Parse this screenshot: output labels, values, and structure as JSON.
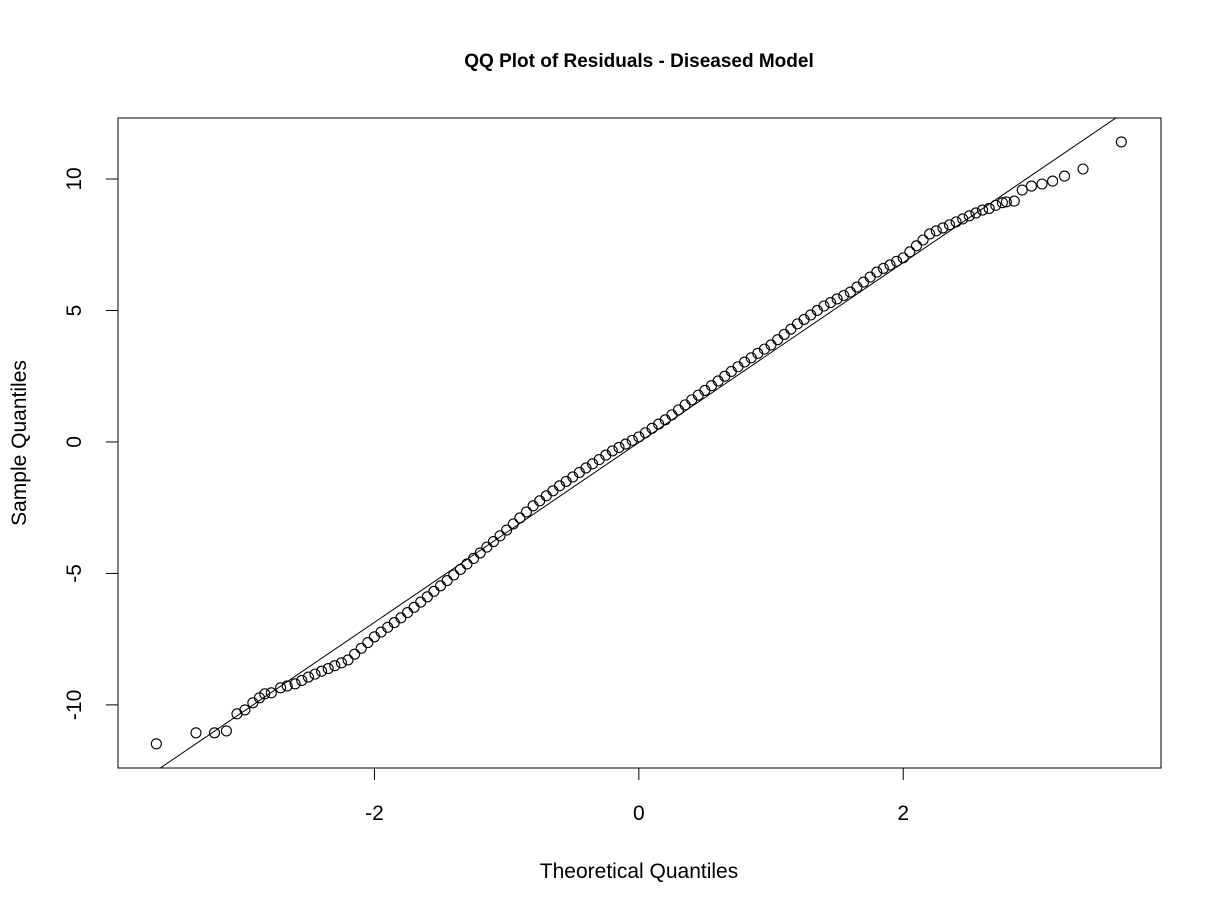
{
  "chart_data": {
    "type": "scatter",
    "title": "QQ Plot of Residuals - Diseased Model",
    "x_label": "Theoretical Quantiles",
    "y_label": "Sample Quantiles",
    "x": [
      -3.65,
      -3.35,
      -3.21,
      -3.12,
      -3.04,
      -2.98,
      -2.92,
      -2.87,
      -2.83,
      -2.78,
      -2.71,
      -2.66,
      -2.6,
      -2.55,
      -2.5,
      -2.45,
      -2.4,
      -2.35,
      -2.3,
      -2.25,
      -2.2,
      -2.15,
      -2.1,
      -2.05,
      -2.0,
      -1.95,
      -1.9,
      -1.85,
      -1.8,
      -1.75,
      -1.7,
      -1.65,
      -1.6,
      -1.55,
      -1.5,
      -1.45,
      -1.4,
      -1.35,
      -1.3,
      -1.25,
      -1.2,
      -1.15,
      -1.1,
      -1.05,
      -1.0,
      -0.95,
      -0.9,
      -0.85,
      -0.8,
      -0.75,
      -0.7,
      -0.65,
      -0.6,
      -0.55,
      -0.5,
      -0.45,
      -0.4,
      -0.35,
      -0.3,
      -0.25,
      -0.2,
      -0.15,
      -0.1,
      -0.05,
      0,
      0.05,
      0.1,
      0.15,
      0.2,
      0.25,
      0.3,
      0.35,
      0.4,
      0.45,
      0.5,
      0.55,
      0.6,
      0.65,
      0.7,
      0.75,
      0.8,
      0.85,
      0.9,
      0.95,
      1.0,
      1.05,
      1.1,
      1.15,
      1.2,
      1.25,
      1.3,
      1.35,
      1.4,
      1.45,
      1.5,
      1.55,
      1.6,
      1.65,
      1.7,
      1.75,
      1.8,
      1.85,
      1.9,
      1.95,
      2.0,
      2.05,
      2.1,
      2.15,
      2.2,
      2.25,
      2.3,
      2.35,
      2.4,
      2.45,
      2.5,
      2.55,
      2.6,
      2.65,
      2.7,
      2.75,
      2.78,
      2.84,
      2.9,
      2.97,
      3.05,
      3.13,
      3.22,
      3.36,
      3.65
    ],
    "y": [
      -11.48,
      -11.06,
      -11.06,
      -10.99,
      -10.34,
      -10.19,
      -9.92,
      -9.73,
      -9.58,
      -9.54,
      -9.35,
      -9.28,
      -9.2,
      -9.07,
      -8.94,
      -8.83,
      -8.72,
      -8.62,
      -8.51,
      -8.4,
      -8.29,
      -8.07,
      -7.85,
      -7.63,
      -7.41,
      -7.23,
      -7.05,
      -6.87,
      -6.69,
      -6.49,
      -6.29,
      -6.09,
      -5.89,
      -5.68,
      -5.47,
      -5.27,
      -5.06,
      -4.85,
      -4.64,
      -4.43,
      -4.22,
      -4.0,
      -3.79,
      -3.57,
      -3.35,
      -3.12,
      -2.89,
      -2.66,
      -2.43,
      -2.24,
      -2.05,
      -1.86,
      -1.67,
      -1.5,
      -1.33,
      -1.16,
      -0.99,
      -0.83,
      -0.67,
      -0.5,
      -0.34,
      -0.21,
      -0.08,
      0.06,
      0.19,
      0.35,
      0.52,
      0.68,
      0.84,
      1.03,
      1.22,
      1.41,
      1.6,
      1.78,
      1.96,
      2.14,
      2.32,
      2.5,
      2.68,
      2.86,
      3.04,
      3.2,
      3.37,
      3.53,
      3.69,
      3.89,
      4.09,
      4.29,
      4.49,
      4.66,
      4.83,
      5.0,
      5.17,
      5.3,
      5.44,
      5.57,
      5.7,
      5.89,
      6.08,
      6.27,
      6.46,
      6.6,
      6.73,
      6.87,
      7.0,
      7.23,
      7.46,
      7.68,
      7.91,
      8.03,
      8.14,
      8.26,
      8.37,
      8.48,
      8.6,
      8.71,
      8.82,
      8.88,
      9.0,
      9.1,
      9.13,
      9.16,
      9.58,
      9.73,
      9.81,
      9.92,
      10.11,
      10.38,
      11.41
    ],
    "marker_color": "#000000",
    "reference_line": {
      "slope": 3.42,
      "intercept": -0.02,
      "color": "#000000"
    },
    "xlim": [
      -3.94,
      3.95
    ],
    "ylim": [
      -12.4,
      12.32
    ],
    "xticks": [
      -2,
      0,
      2
    ],
    "yticks": [
      -10,
      -5,
      0,
      5,
      10
    ]
  }
}
